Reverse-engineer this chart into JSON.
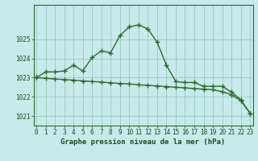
{
  "line1_x": [
    0,
    1,
    2,
    3,
    4,
    5,
    6,
    7,
    8,
    9,
    10,
    11,
    12,
    13,
    14,
    15,
    16,
    17,
    18,
    19,
    20,
    21,
    22,
    23
  ],
  "line1_y": [
    1023.0,
    1023.3,
    1023.3,
    1023.35,
    1023.65,
    1023.35,
    1024.05,
    1024.4,
    1024.3,
    1025.2,
    1025.65,
    1025.75,
    1025.55,
    1024.85,
    1023.65,
    1022.8,
    1022.75,
    1022.75,
    1022.55,
    1022.55,
    1022.55,
    1022.25,
    1021.85,
    1021.15
  ],
  "line2_x": [
    0,
    1,
    2,
    3,
    4,
    5,
    6,
    7,
    8,
    9,
    10,
    11,
    12,
    13,
    14,
    15,
    16,
    17,
    18,
    19,
    20,
    21,
    22,
    23
  ],
  "line2_y": [
    1023.0,
    1022.97,
    1022.93,
    1022.9,
    1022.87,
    1022.83,
    1022.8,
    1022.77,
    1022.73,
    1022.7,
    1022.67,
    1022.63,
    1022.6,
    1022.57,
    1022.53,
    1022.5,
    1022.47,
    1022.43,
    1022.4,
    1022.37,
    1022.27,
    1022.1,
    1021.8,
    1021.15
  ],
  "line_color": "#2d6a2d",
  "bg_color": "#c8eaea",
  "grid_color": "#7abcaa",
  "xlabel": "Graphe pression niveau de la mer (hPa)",
  "xlabel_color": "#1a4a1a",
  "xtick_labels": [
    "0",
    "1",
    "2",
    "3",
    "4",
    "5",
    "6",
    "7",
    "8",
    "9",
    "10",
    "11",
    "12",
    "13",
    "14",
    "15",
    "16",
    "17",
    "18",
    "19",
    "20",
    "21",
    "22",
    "23"
  ],
  "yticks": [
    1021,
    1022,
    1023,
    1024,
    1025
  ],
  "ylim": [
    1020.5,
    1026.8
  ],
  "xlim": [
    -0.3,
    23.3
  ],
  "marker": "+",
  "linewidth": 1.0,
  "markersize": 4,
  "markeredgewidth": 1.0,
  "tick_fontsize": 5.5,
  "xlabel_fontsize": 6.5
}
